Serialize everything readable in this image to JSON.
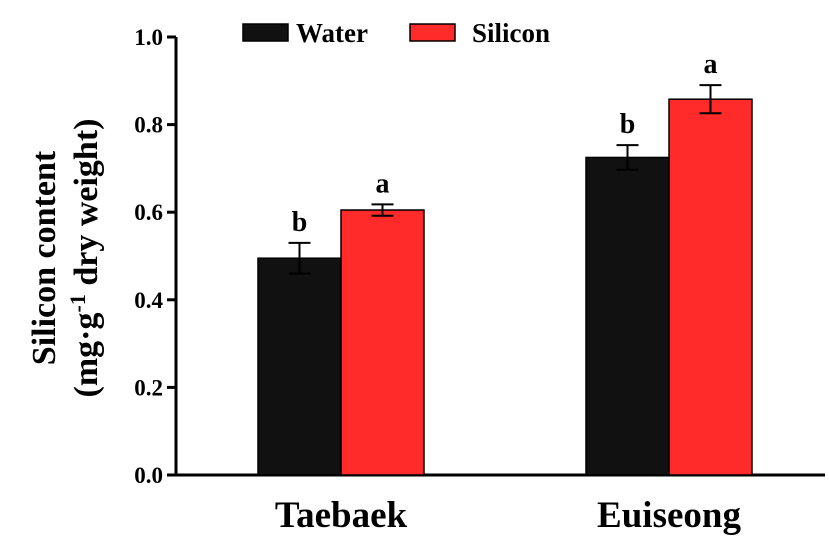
{
  "chart_data": {
    "type": "bar",
    "categories": [
      "Taebaek",
      "Euiseong"
    ],
    "series": [
      {
        "name": "Water",
        "color": "#111111",
        "values": [
          0.495,
          0.725
        ],
        "errors": [
          0.035,
          0.028
        ],
        "significance": [
          "b",
          "b"
        ]
      },
      {
        "name": "Silicon",
        "color": "#ff2a2a",
        "values": [
          0.605,
          0.858
        ],
        "errors": [
          0.013,
          0.032
        ],
        "significance": [
          "a",
          "a"
        ]
      }
    ],
    "ylabel_line1": "Silicon content",
    "ylabel_line2_pre": "(mg·g",
    "ylabel_line2_sup": "-1",
    "ylabel_line2_post": " dry weight)",
    "ylim": [
      0,
      1.0
    ],
    "yticks": [
      "0.0",
      "0.2",
      "0.4",
      "0.6",
      "0.8",
      "1.0"
    ],
    "legend_position": "top-center",
    "grid": false
  }
}
